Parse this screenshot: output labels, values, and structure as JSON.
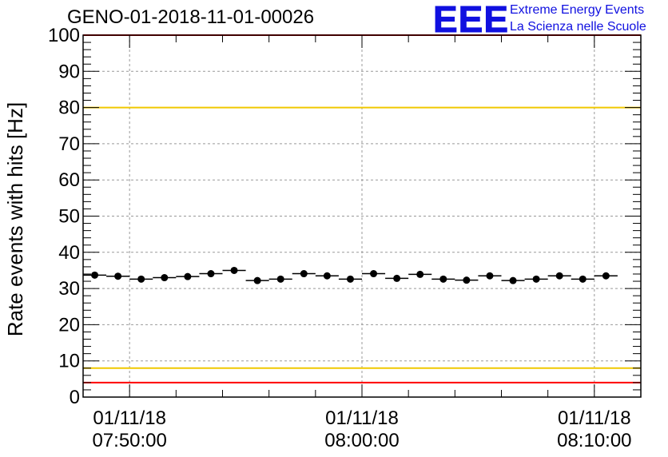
{
  "title": "GENO-01-2018-11-01-00026",
  "logo": {
    "mark": "EEE",
    "line1": "Extreme Energy Events",
    "line2": "La Scienza nelle Scuole",
    "color": "#1010e0"
  },
  "chart_data": {
    "type": "scatter",
    "ylabel": "Rate events with hits [Hz]",
    "xlabel": "",
    "ylim": [
      0,
      100
    ],
    "yticks": [
      0,
      10,
      20,
      30,
      40,
      50,
      60,
      70,
      80,
      90,
      100
    ],
    "xlim": [
      "07:48:00",
      "08:12:00"
    ],
    "xticks": [
      {
        "time": "07:50:00",
        "date": "01/11/18"
      },
      {
        "time": "08:00:00",
        "date": "01/11/18"
      },
      {
        "time": "08:10:00",
        "date": "01/11/18"
      }
    ],
    "grid": true,
    "reference_lines": [
      {
        "value": 100,
        "color": "#ff0000"
      },
      {
        "value": 80,
        "color": "#f0c800"
      },
      {
        "value": 8,
        "color": "#f0c800"
      },
      {
        "value": 4,
        "color": "#ff0000"
      }
    ],
    "series": [
      {
        "marker_color": "#000000",
        "bin_width_minutes": 1,
        "points": [
          {
            "x": "07:48:30",
            "y": 33.7
          },
          {
            "x": "07:49:30",
            "y": 33.4
          },
          {
            "x": "07:50:30",
            "y": 32.6
          },
          {
            "x": "07:51:30",
            "y": 33.0
          },
          {
            "x": "07:52:30",
            "y": 33.3
          },
          {
            "x": "07:53:30",
            "y": 34.1
          },
          {
            "x": "07:54:30",
            "y": 35.0
          },
          {
            "x": "07:55:30",
            "y": 32.2
          },
          {
            "x": "07:56:30",
            "y": 32.6
          },
          {
            "x": "07:57:30",
            "y": 34.1
          },
          {
            "x": "07:58:30",
            "y": 33.5
          },
          {
            "x": "07:59:30",
            "y": 32.6
          },
          {
            "x": "08:00:30",
            "y": 34.1
          },
          {
            "x": "08:01:30",
            "y": 32.8
          },
          {
            "x": "08:02:30",
            "y": 33.9
          },
          {
            "x": "08:03:30",
            "y": 32.6
          },
          {
            "x": "08:04:30",
            "y": 32.3
          },
          {
            "x": "08:05:30",
            "y": 33.5
          },
          {
            "x": "08:06:30",
            "y": 32.2
          },
          {
            "x": "08:07:30",
            "y": 32.6
          },
          {
            "x": "08:08:30",
            "y": 33.5
          },
          {
            "x": "08:09:30",
            "y": 32.6
          },
          {
            "x": "08:10:30",
            "y": 33.5
          }
        ]
      }
    ]
  }
}
